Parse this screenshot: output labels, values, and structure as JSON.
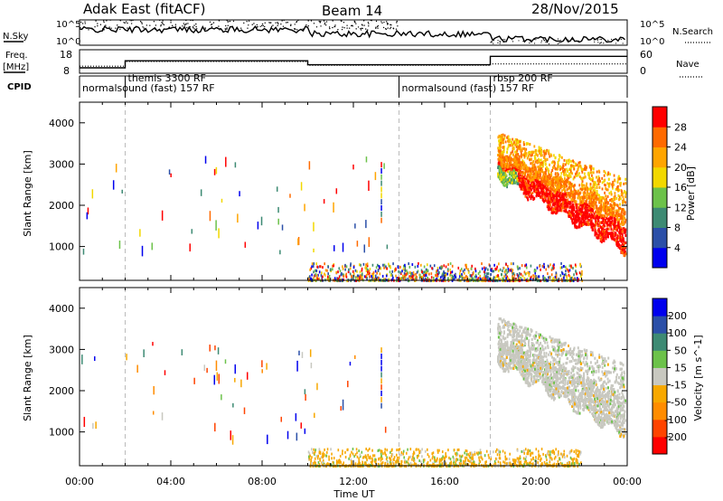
{
  "header": {
    "station": "Adak East (fitACF)",
    "beam": "Beam 14",
    "date": "28/Nov/2015"
  },
  "panels": {
    "nsky_label": "N.Sky",
    "nsearch_label": "N.Search",
    "nsky_ticks": [
      "10^5",
      "10^0"
    ],
    "nsearch_ticks": [
      "10^5",
      "10^0"
    ],
    "freq_label": "Freq.",
    "freq_unit": "[MHz]",
    "freq_ticks": [
      "18",
      "8"
    ],
    "nave_label": "Nave",
    "nave_ticks": [
      "60",
      "0"
    ],
    "cpid_label": "CPID",
    "cpid_segments": [
      {
        "label": "normalsound (fast) 157 RF",
        "start": 0,
        "end": 14
      },
      {
        "label": "themis 3300 RF",
        "start": 2,
        "end": 10
      },
      {
        "label": "normalsound (fast) 157 RF",
        "start": 14,
        "end": 18
      },
      {
        "label": "rbsp 200 RF",
        "start": 18,
        "end": 24
      }
    ]
  },
  "chart_data": [
    {
      "type": "heatmap",
      "name": "Power",
      "ylabel": "Slant Range [km]",
      "xlabel": "Time UT",
      "xlim": [
        0,
        24
      ],
      "ylim": [
        180,
        4500
      ],
      "x_ticks": [
        "00:00",
        "04:00",
        "08:00",
        "12:00",
        "16:00",
        "20:00",
        "00:00"
      ],
      "y_ticks": [
        1000,
        2000,
        3000,
        4000
      ],
      "colorbar": {
        "label": "Power [dB]",
        "ticks": [
          4,
          8,
          12,
          16,
          20,
          24,
          28
        ],
        "colors": [
          "#0000ee",
          "#2b4fa8",
          "#3d8a73",
          "#6cc24a",
          "#f2d800",
          "#ffa500",
          "#ff6a00",
          "#ff0000"
        ]
      },
      "features": [
        {
          "desc": "ground scatter band",
          "time": [
            10,
            22
          ],
          "range": [
            180,
            500
          ],
          "value": 12
        },
        {
          "desc": "ionospheric echoes",
          "time": [
            18.2,
            23.9
          ],
          "range": [
            800,
            3800
          ],
          "value": 26
        }
      ]
    },
    {
      "type": "heatmap",
      "name": "Velocity",
      "ylabel": "Slant Range [km]",
      "xlabel": "Time UT",
      "xlim": [
        0,
        24
      ],
      "ylim": [
        180,
        4500
      ],
      "x_ticks": [
        "00:00",
        "04:00",
        "08:00",
        "12:00",
        "16:00",
        "20:00",
        "00:00"
      ],
      "y_ticks": [
        1000,
        2000,
        3000,
        4000
      ],
      "colorbar": {
        "label": "Velocity [m s^-1]",
        "ticks": [
          200,
          100,
          50,
          15,
          -15,
          -50,
          -100,
          -200
        ],
        "colors": [
          "#0000ee",
          "#2b4fa8",
          "#3d8a73",
          "#6cc24a",
          "#c8c8c0",
          "#f7a800",
          "#ff8c00",
          "#ff4400",
          "#ff0000"
        ]
      },
      "features": [
        {
          "desc": "ground scatter (low velocity)",
          "time": [
            10,
            22
          ],
          "range": [
            180,
            500
          ],
          "value": -30
        },
        {
          "desc": "ionospheric echoes grey",
          "time": [
            18.2,
            23.9
          ],
          "range": [
            800,
            3800
          ],
          "value": 0
        }
      ]
    }
  ]
}
